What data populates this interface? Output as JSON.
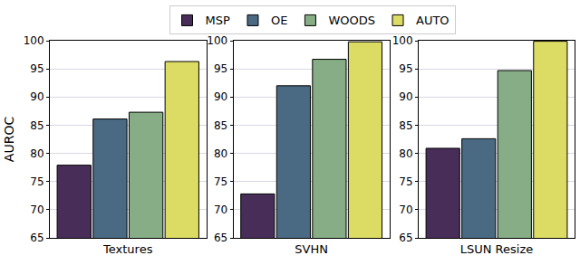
{
  "chart_data": [
    {
      "type": "bar",
      "categories": [
        "Textures"
      ],
      "y_label": "AUROC",
      "legend": "top",
      "series": [
        {
          "name": "MSP",
          "color": "#482d59",
          "values": [
            77.9
          ]
        },
        {
          "name": "OE",
          "color": "#4a6a84",
          "values": [
            86.1
          ]
        },
        {
          "name": "WOODS",
          "color": "#86ad86",
          "values": [
            87.3
          ]
        },
        {
          "name": "AUTO",
          "color": "#dcdb64",
          "values": [
            96.3
          ]
        }
      ],
      "ylim": [
        65,
        100
      ],
      "yticks": [
        65,
        70,
        75,
        80,
        85,
        90,
        95,
        100
      ],
      "grid": true
    },
    {
      "type": "bar",
      "categories": [
        "SVHN"
      ],
      "series": [
        {
          "name": "MSP",
          "color": "#482d59",
          "values": [
            72.8
          ]
        },
        {
          "name": "OE",
          "color": "#4a6a84",
          "values": [
            92.0
          ]
        },
        {
          "name": "WOODS",
          "color": "#86ad86",
          "values": [
            96.7
          ]
        },
        {
          "name": "AUTO",
          "color": "#dcdb64",
          "values": [
            99.8
          ]
        }
      ],
      "ylim": [
        65,
        100
      ],
      "yticks": [
        65,
        70,
        75,
        80,
        85,
        90,
        95,
        100
      ],
      "grid": true
    },
    {
      "type": "bar",
      "categories": [
        "LSUN Resize"
      ],
      "series": [
        {
          "name": "MSP",
          "color": "#482d59",
          "values": [
            80.9
          ]
        },
        {
          "name": "OE",
          "color": "#4a6a84",
          "values": [
            82.6
          ]
        },
        {
          "name": "WOODS",
          "color": "#86ad86",
          "values": [
            94.7
          ]
        },
        {
          "name": "AUTO",
          "color": "#dcdb64",
          "values": [
            99.9
          ]
        }
      ],
      "ylim": [
        65,
        100
      ],
      "yticks": [
        65,
        70,
        75,
        80,
        85,
        90,
        95,
        100
      ],
      "grid": true
    }
  ]
}
